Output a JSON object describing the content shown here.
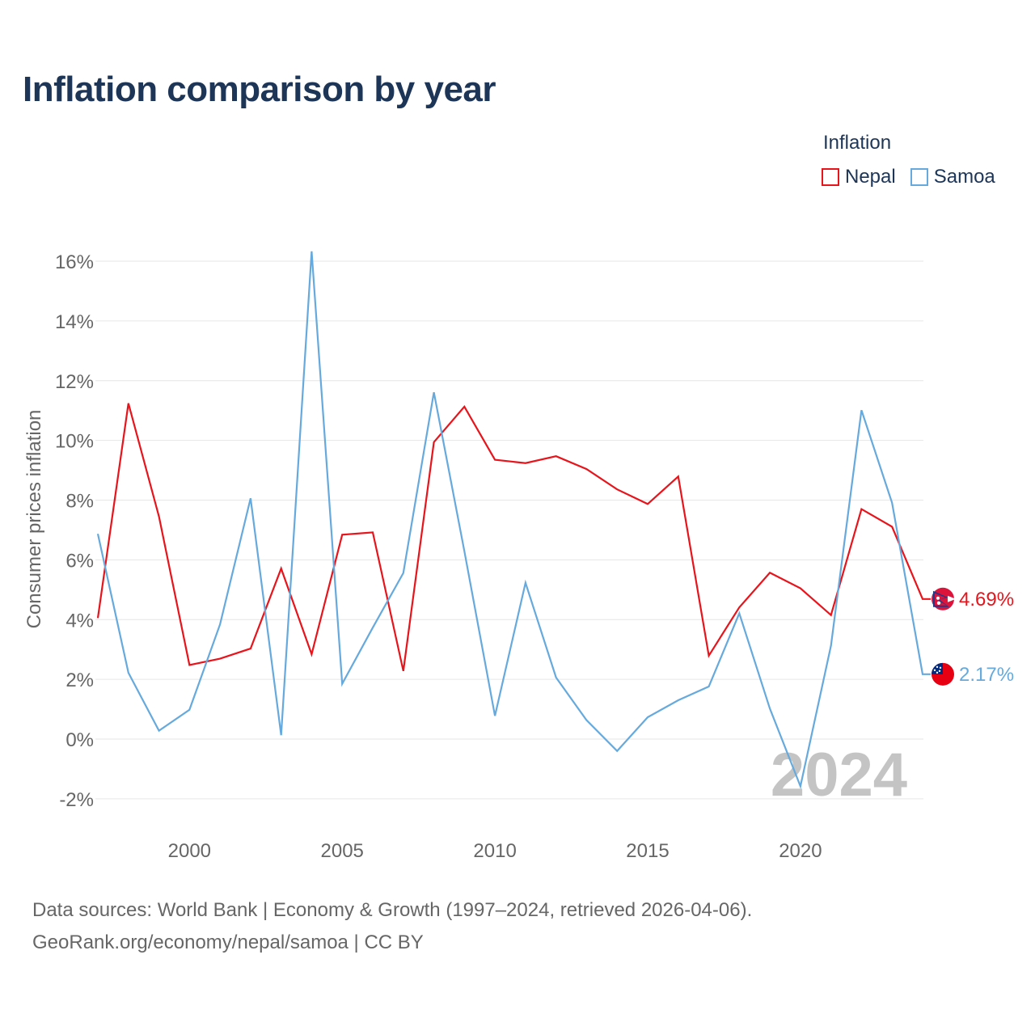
{
  "title": "Inflation comparison by year",
  "legend": {
    "title": "Inflation",
    "items": [
      {
        "name": "Nepal",
        "color": "#e8141c"
      },
      {
        "name": "Samoa",
        "color": "#66aadd"
      }
    ]
  },
  "chart_data": {
    "type": "line",
    "title": "Inflation comparison by year",
    "xlabel": "",
    "ylabel": "Consumer prices inflation",
    "xlim": [
      1997,
      2024
    ],
    "ylim": [
      -2.5,
      17
    ],
    "xticks": [
      2000,
      2005,
      2010,
      2015,
      2020
    ],
    "yticks": [
      -2,
      0,
      2,
      4,
      6,
      8,
      10,
      12,
      14,
      16
    ],
    "ytick_labels": [
      "-2%",
      "0%",
      "2%",
      "4%",
      "6%",
      "8%",
      "10%",
      "12%",
      "14%",
      "16%"
    ],
    "grid": true,
    "legend_position": "top-right",
    "year_watermark": "2024",
    "x": [
      1997,
      1998,
      1999,
      2000,
      2001,
      2002,
      2003,
      2004,
      2005,
      2006,
      2007,
      2008,
      2009,
      2010,
      2011,
      2012,
      2013,
      2014,
      2015,
      2016,
      2017,
      2018,
      2019,
      2020,
      2021,
      2022,
      2023,
      2024
    ],
    "series": [
      {
        "name": "Nepal",
        "color": "#e8141c",
        "end_label": "4.69%",
        "values": [
          4.05,
          11.24,
          7.45,
          2.48,
          2.69,
          3.03,
          5.71,
          2.84,
          6.84,
          6.92,
          2.28,
          9.94,
          11.13,
          9.35,
          9.24,
          9.47,
          9.04,
          8.36,
          7.87,
          8.79,
          2.79,
          4.41,
          5.57,
          5.05,
          4.15,
          7.7,
          7.11,
          4.69
        ]
      },
      {
        "name": "Samoa",
        "color": "#66aadd",
        "end_label": "2.17%",
        "values": [
          6.87,
          2.22,
          0.28,
          0.98,
          3.84,
          8.06,
          0.13,
          16.33,
          1.85,
          3.73,
          5.56,
          11.61,
          6.29,
          0.78,
          5.23,
          2.06,
          0.63,
          -0.4,
          0.73,
          1.3,
          1.76,
          4.21,
          1.02,
          -1.58,
          3.13,
          11.01,
          7.91,
          2.17
        ]
      }
    ]
  },
  "footer": {
    "line1": "Data sources: World Bank | Economy & Growth (1997–2024, retrieved 2026-04-06).",
    "line2": "GeoRank.org/economy/nepal/samoa | CC BY"
  }
}
